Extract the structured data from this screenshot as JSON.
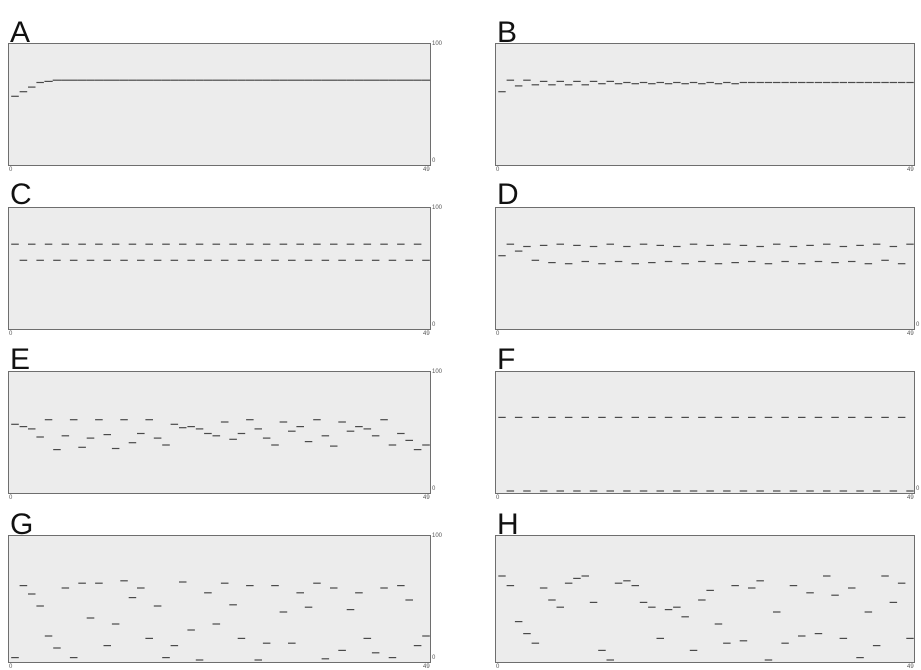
{
  "chart_data": [
    {
      "panel": "A",
      "type": "line",
      "x_range": [
        0,
        49
      ],
      "ylim": [
        0,
        100
      ],
      "x_ticks": [
        "0",
        "49"
      ],
      "y_ticks": [
        "100",
        "0"
      ],
      "x": [
        0,
        1,
        2,
        3,
        4,
        5,
        6,
        7,
        8,
        9,
        10,
        11,
        12,
        13,
        14,
        15,
        16,
        17,
        18,
        19,
        20,
        21,
        22,
        23,
        24,
        25,
        26,
        27,
        28,
        29,
        30,
        31,
        32,
        33,
        34,
        35,
        36,
        37,
        38,
        39,
        40,
        41,
        42,
        43,
        44,
        45,
        46,
        47,
        48,
        49
      ],
      "series": [
        {
          "values": [
            58,
            62,
            66,
            70,
            71,
            72,
            72,
            72,
            72,
            72,
            72,
            72,
            72,
            72,
            72,
            72,
            72,
            72,
            72,
            72,
            72,
            72,
            72,
            72,
            72,
            72,
            72,
            72,
            72,
            72,
            72,
            72,
            72,
            72,
            72,
            72,
            72,
            72,
            72,
            72,
            72,
            72,
            72,
            72,
            72,
            72,
            72,
            72,
            72,
            72
          ]
        }
      ]
    },
    {
      "panel": "B",
      "type": "line",
      "x_range": [
        0,
        49
      ],
      "ylim": [
        0,
        100
      ],
      "x_ticks": [
        "0",
        "49"
      ],
      "y_ticks": [
        "",
        ""
      ],
      "x": [
        0,
        1,
        2,
        3,
        4,
        5,
        6,
        7,
        8,
        9,
        10,
        11,
        12,
        13,
        14,
        15,
        16,
        17,
        18,
        19,
        20,
        21,
        22,
        23,
        24,
        25,
        26,
        27,
        28,
        29,
        30,
        31,
        32,
        33,
        34,
        35,
        36,
        37,
        38,
        39,
        40,
        41,
        42,
        43,
        44,
        45,
        46,
        47,
        48,
        49
      ],
      "series": [
        {
          "values": [
            62,
            72,
            67,
            72,
            68,
            71,
            68,
            71,
            68,
            71,
            68,
            71,
            69,
            71,
            69,
            70,
            69,
            70,
            69,
            70,
            69,
            70,
            69,
            70,
            69,
            70,
            69,
            70,
            69,
            70,
            70,
            70,
            70,
            70,
            70,
            70,
            70,
            70,
            70,
            70,
            70,
            70,
            70,
            70,
            70,
            70,
            70,
            70,
            70,
            70
          ]
        }
      ]
    },
    {
      "panel": "C",
      "type": "line",
      "x_range": [
        0,
        49
      ],
      "ylim": [
        0,
        100
      ],
      "x_ticks": [
        "0",
        "49"
      ],
      "y_ticks": [
        "100",
        "0"
      ],
      "x": [
        0,
        1,
        2,
        3,
        4,
        5,
        6,
        7,
        8,
        9,
        10,
        11,
        12,
        13,
        14,
        15,
        16,
        17,
        18,
        19,
        20,
        21,
        22,
        23,
        24,
        25,
        26,
        27,
        28,
        29,
        30,
        31,
        32,
        33,
        34,
        35,
        36,
        37,
        38,
        39,
        40,
        41,
        42,
        43,
        44,
        45,
        46,
        47,
        48,
        49
      ],
      "series": [
        {
          "values": [
            72,
            58,
            72,
            58,
            72,
            58,
            72,
            58,
            72,
            58,
            72,
            58,
            72,
            58,
            72,
            58,
            72,
            58,
            72,
            58,
            72,
            58,
            72,
            58,
            72,
            58,
            72,
            58,
            72,
            58,
            72,
            58,
            72,
            58,
            72,
            58,
            72,
            58,
            72,
            58,
            72,
            58,
            72,
            58,
            72,
            58,
            72,
            58,
            72,
            58
          ]
        }
      ]
    },
    {
      "panel": "D",
      "type": "line",
      "x_range": [
        0,
        49
      ],
      "ylim": [
        0,
        100
      ],
      "x_ticks": [
        "0",
        "49"
      ],
      "y_ticks": [
        "",
        "0"
      ],
      "x": [
        0,
        1,
        2,
        3,
        4,
        5,
        6,
        7,
        8,
        9,
        10,
        11,
        12,
        13,
        14,
        15,
        16,
        17,
        18,
        19,
        20,
        21,
        22,
        23,
        24,
        25,
        26,
        27,
        28,
        29,
        30,
        31,
        32,
        33,
        34,
        35,
        36,
        37,
        38,
        39,
        40,
        41,
        42,
        43,
        44,
        45,
        46,
        47,
        48,
        49
      ],
      "series": [
        {
          "values": [
            62,
            72,
            66,
            70,
            58,
            71,
            56,
            72,
            55,
            71,
            57,
            70,
            55,
            72,
            57,
            70,
            55,
            72,
            56,
            71,
            57,
            70,
            55,
            72,
            57,
            71,
            55,
            72,
            56,
            71,
            57,
            70,
            55,
            72,
            57,
            70,
            55,
            71,
            57,
            72,
            56,
            70,
            57,
            71,
            55,
            72,
            58,
            70,
            55,
            72
          ]
        }
      ]
    },
    {
      "panel": "E",
      "type": "line",
      "x_range": [
        0,
        49
      ],
      "ylim": [
        0,
        100
      ],
      "x_ticks": [
        "0",
        "49"
      ],
      "y_ticks": [
        "100",
        "0"
      ],
      "x": [
        0,
        1,
        2,
        3,
        4,
        5,
        6,
        7,
        8,
        9,
        10,
        11,
        12,
        13,
        14,
        15,
        16,
        17,
        18,
        19,
        20,
        21,
        22,
        23,
        24,
        25,
        26,
        27,
        28,
        29,
        30,
        31,
        32,
        33,
        34,
        35,
        36,
        37,
        38,
        39,
        40,
        41,
        42,
        43,
        44,
        45,
        46,
        47,
        48,
        49
      ],
      "series": [
        {
          "values": [
            58,
            56,
            54,
            47,
            62,
            36,
            48,
            62,
            38,
            46,
            62,
            49,
            37,
            62,
            42,
            50,
            62,
            46,
            40,
            58,
            55,
            56,
            54,
            50,
            48,
            60,
            45,
            50,
            62,
            54,
            46,
            40,
            60,
            52,
            56,
            43,
            62,
            48,
            39,
            60,
            52,
            56,
            54,
            48,
            62,
            40,
            50,
            44,
            36,
            40
          ]
        }
      ]
    },
    {
      "panel": "F",
      "type": "line",
      "x_range": [
        0,
        49
      ],
      "ylim": [
        0,
        100
      ],
      "x_ticks": [
        "0",
        "49"
      ],
      "y_ticks": [
        "",
        "0"
      ],
      "x": [
        0,
        1,
        2,
        3,
        4,
        5,
        6,
        7,
        8,
        9,
        10,
        11,
        12,
        13,
        14,
        15,
        16,
        17,
        18,
        19,
        20,
        21,
        22,
        23,
        24,
        25,
        26,
        27,
        28,
        29,
        30,
        31,
        32,
        33,
        34,
        35,
        36,
        37,
        38,
        39,
        40,
        41,
        42,
        43,
        44,
        45,
        46,
        47,
        48,
        49
      ],
      "series": [
        {
          "values": [
            64,
            0,
            64,
            0,
            64,
            0,
            64,
            0,
            64,
            0,
            64,
            0,
            64,
            0,
            64,
            0,
            64,
            0,
            64,
            0,
            64,
            0,
            64,
            0,
            64,
            0,
            64,
            0,
            64,
            0,
            64,
            0,
            64,
            0,
            64,
            0,
            64,
            0,
            64,
            0,
            64,
            0,
            64,
            0,
            64,
            0,
            64,
            0,
            64,
            0
          ]
        }
      ]
    },
    {
      "panel": "G",
      "type": "line",
      "x_range": [
        0,
        49
      ],
      "ylim": [
        0,
        100
      ],
      "x_ticks": [
        "0",
        "49"
      ],
      "y_ticks": [
        "100",
        "0"
      ],
      "x": [
        0,
        1,
        2,
        3,
        4,
        5,
        6,
        7,
        8,
        9,
        10,
        11,
        12,
        13,
        14,
        15,
        16,
        17,
        18,
        19,
        20,
        21,
        22,
        23,
        24,
        25,
        26,
        27,
        28,
        29,
        30,
        31,
        32,
        33,
        34,
        35,
        36,
        37,
        38,
        39,
        40,
        41,
        42,
        43,
        44,
        45,
        46,
        47,
        48,
        49
      ],
      "series": [
        {
          "values": [
            2,
            62,
            55,
            45,
            20,
            10,
            60,
            2,
            64,
            35,
            64,
            12,
            30,
            66,
            52,
            60,
            18,
            45,
            2,
            12,
            65,
            25,
            0,
            56,
            30,
            64,
            46,
            18,
            62,
            0,
            14,
            62,
            40,
            14,
            56,
            44,
            64,
            1,
            60,
            8,
            42,
            56,
            18,
            6,
            60,
            2,
            62,
            50,
            12,
            20
          ]
        }
      ]
    },
    {
      "panel": "H",
      "type": "line",
      "x_range": [
        0,
        49
      ],
      "ylim": [
        0,
        100
      ],
      "x_ticks": [
        "0",
        "49"
      ],
      "y_ticks": [
        "",
        ""
      ],
      "x": [
        0,
        1,
        2,
        3,
        4,
        5,
        6,
        7,
        8,
        9,
        10,
        11,
        12,
        13,
        14,
        15,
        16,
        17,
        18,
        19,
        20,
        21,
        22,
        23,
        24,
        25,
        26,
        27,
        28,
        29,
        30,
        31,
        32,
        33,
        34,
        35,
        36,
        37,
        38,
        39,
        40,
        41,
        42,
        43,
        44,
        45,
        46,
        47,
        48,
        49
      ],
      "series": [
        {
          "values": [
            70,
            62,
            32,
            22,
            14,
            60,
            50,
            44,
            64,
            68,
            70,
            48,
            8,
            0,
            64,
            66,
            62,
            48,
            44,
            18,
            42,
            44,
            36,
            8,
            50,
            58,
            30,
            14,
            62,
            16,
            60,
            66,
            0,
            40,
            14,
            62,
            20,
            56,
            22,
            70,
            54,
            18,
            60,
            2,
            40,
            12,
            70,
            48,
            64,
            18
          ]
        }
      ]
    }
  ]
}
